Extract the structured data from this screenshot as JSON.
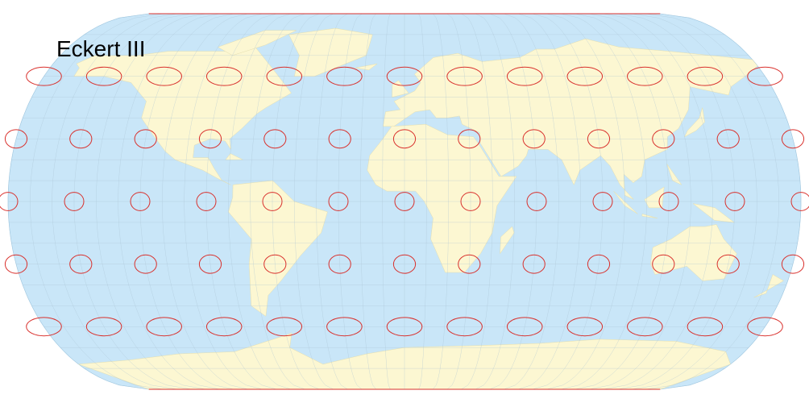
{
  "title": "Eckert III"
}
